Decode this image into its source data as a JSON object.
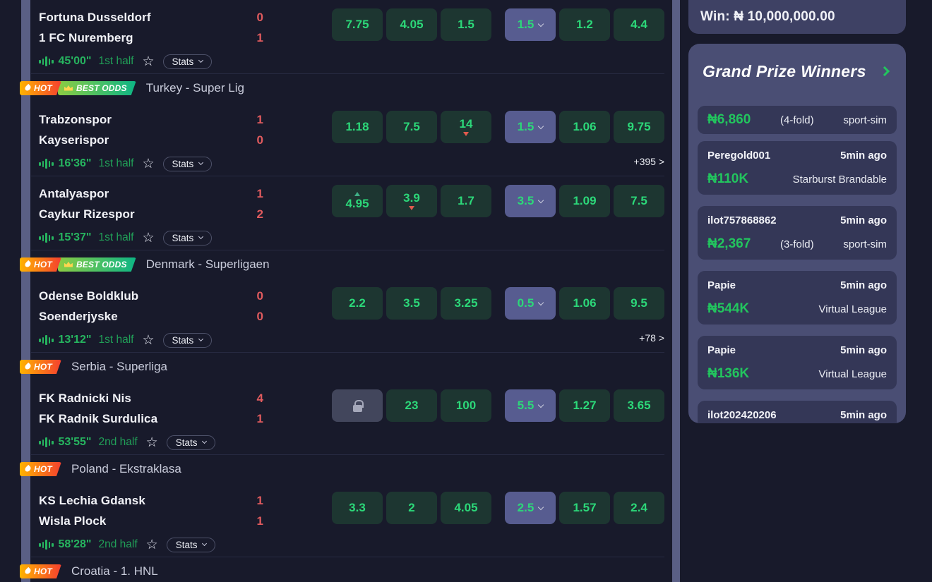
{
  "colors": {
    "page_bg": "#181a2b",
    "odds_green": "#2cd879",
    "odds_button_bg": "#1d3631",
    "dropdown_button_bg": "#575c90",
    "score_red": "#e15b5e",
    "live_green": "#26b45f",
    "accent_green": "#22c55e",
    "sidebar_panel_bg": "#4a4e74",
    "winner_row_bg": "#343757",
    "hot_badge_gradient": [
      "#ffb300",
      "#f4402f"
    ],
    "best_odds_gradient": [
      "#8ccc43",
      "#0db585"
    ]
  },
  "main": {
    "blocks": [
      {
        "type": "match",
        "home": "Fortuna Dusseldorf",
        "away": "1 FC Nuremberg",
        "home_score": "0",
        "away_score": "1",
        "time": "45'00\"",
        "half": "1st half",
        "stats_label": "Stats",
        "odds": [
          "7.75",
          "4.05",
          "1.5",
          "1.5",
          "1.2",
          "4.4"
        ]
      },
      {
        "type": "league_header",
        "title": "Turkey - Super Lig",
        "badges": [
          "HOT",
          "BEST ODDS"
        ]
      },
      {
        "type": "match",
        "home": "Trabzonspor",
        "away": "Kayserispor",
        "home_score": "1",
        "away_score": "0",
        "time": "16'36\"",
        "half": "1st half",
        "stats_label": "Stats",
        "odds": [
          "1.18",
          "7.5",
          "14",
          "1.5",
          "1.06",
          "9.75"
        ],
        "trends": {
          "2": "down"
        },
        "more": "+395 >"
      },
      {
        "type": "match",
        "home": "Antalyaspor",
        "away": "Caykur Rizespor",
        "home_score": "1",
        "away_score": "2",
        "time": "15'37\"",
        "half": "1st half",
        "stats_label": "Stats",
        "odds": [
          "4.95",
          "3.9",
          "1.7",
          "3.5",
          "1.09",
          "7.5"
        ],
        "trends": {
          "0": "up",
          "1": "down"
        }
      },
      {
        "type": "league_header",
        "title": "Denmark - Superligaen",
        "badges": [
          "HOT",
          "BEST ODDS"
        ]
      },
      {
        "type": "match",
        "home": "Odense Boldklub",
        "away": "Soenderjyske",
        "home_score": "0",
        "away_score": "0",
        "time": "13'12\"",
        "half": "1st half",
        "stats_label": "Stats",
        "odds": [
          "2.2",
          "3.5",
          "3.25",
          "0.5",
          "1.06",
          "9.5"
        ],
        "more": "+78 >"
      },
      {
        "type": "league_header",
        "title": "Serbia - Superliga",
        "badges": [
          "HOT"
        ]
      },
      {
        "type": "match",
        "home": "FK Radnicki Nis",
        "away": "FK Radnik Surdulica",
        "home_score": "4",
        "away_score": "1",
        "time": "53'55\"",
        "half": "2nd half",
        "stats_label": "Stats",
        "odds": [
          null,
          "23",
          "100",
          "5.5",
          "1.27",
          "3.65"
        ],
        "locked": [
          0
        ]
      },
      {
        "type": "league_header",
        "title": "Poland - Ekstraklasa",
        "badges": [
          "HOT"
        ]
      },
      {
        "type": "match",
        "home": "KS Lechia Gdansk",
        "away": "Wisla Plock",
        "home_score": "1",
        "away_score": "1",
        "time": "58'28\"",
        "half": "2nd half",
        "stats_label": "Stats",
        "odds": [
          "3.3",
          "2",
          "4.05",
          "2.5",
          "1.57",
          "2.4"
        ]
      },
      {
        "type": "league_header",
        "title": "Croatia - 1. HNL",
        "badges": [
          "HOT"
        ]
      }
    ]
  },
  "sidebar": {
    "win_banner": {
      "text": "Win: ₦ 10,000,000.00"
    },
    "grand_prize": {
      "title": "Grand Prize Winners",
      "winners": [
        {
          "amount": "₦6,860",
          "fold": "(4-fold)",
          "product": "sport-sim"
        },
        {
          "user": "Peregold001",
          "time": "5min ago",
          "amount": "₦110K",
          "product": "Starburst Brandable"
        },
        {
          "user": "ilot757868862",
          "time": "5min ago",
          "amount": "₦2,367",
          "fold": "(3-fold)",
          "product": "sport-sim"
        },
        {
          "user": "Papie",
          "time": "5min ago",
          "amount": "₦544K",
          "product": "Virtual League"
        },
        {
          "user": "Papie",
          "time": "5min ago",
          "amount": "₦136K",
          "product": "Virtual League"
        },
        {
          "user": "ilot202420206",
          "time": "5min ago"
        }
      ]
    }
  }
}
